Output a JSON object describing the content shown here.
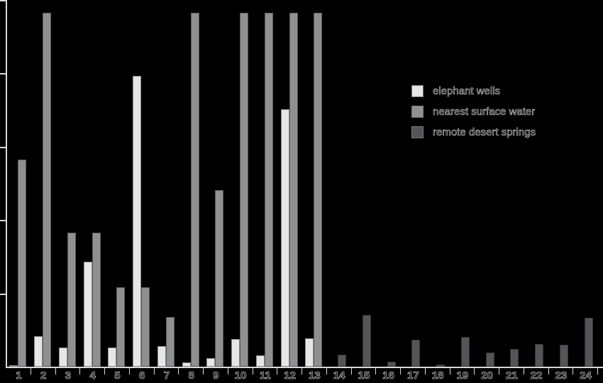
{
  "chart_data": {
    "type": "bar",
    "title": "",
    "xlabel": "",
    "ylabel": "",
    "categories": [
      "1",
      "2",
      "3",
      "4",
      "5",
      "6",
      "7",
      "8",
      "9",
      "10",
      "11",
      "12",
      "13",
      "14",
      "15",
      "16",
      "17",
      "18",
      "19",
      "20",
      "21",
      "22",
      "23",
      "24"
    ],
    "series": [
      {
        "name": "elephant wells",
        "color": "#e6e6e6",
        "values": [
          0.02,
          0.42,
          0.26,
          1.43,
          0.26,
          3.97,
          0.28,
          0.06,
          0.12,
          0.38,
          0.15,
          3.51,
          0.39,
          null,
          null,
          null,
          null,
          null,
          null,
          null,
          null,
          null,
          null,
          null
        ]
      },
      {
        "name": "nearest surface water",
        "color": "#8f9093",
        "values": [
          2.82,
          4.83,
          1.83,
          1.83,
          1.08,
          1.08,
          0.68,
          4.83,
          2.41,
          4.83,
          4.83,
          4.83,
          4.83,
          null,
          null,
          null,
          null,
          null,
          null,
          null,
          null,
          null,
          null,
          null
        ]
      },
      {
        "name": "remote desert springs",
        "color": "#555557",
        "values": [
          null,
          null,
          null,
          null,
          null,
          null,
          null,
          null,
          null,
          null,
          null,
          null,
          null,
          0.16,
          0.71,
          0.07,
          0.37,
          0.03,
          0.41,
          0.19,
          0.24,
          0.31,
          0.3,
          0.67
        ]
      }
    ],
    "notes": "Bars reaching 4.83 are clipped at the top of the plot area. Y-axis has tick marks at equal intervals without numeric labels.",
    "ylim": [
      0,
      5
    ],
    "grid": false,
    "legend_position": "upper right"
  },
  "legend": {
    "items": [
      {
        "label": "elephant wells",
        "color": "#e6e6e6"
      },
      {
        "label": "nearest surface water",
        "color": "#8f9093"
      },
      {
        "label": "remote desert springs",
        "color": "#555557"
      }
    ]
  }
}
